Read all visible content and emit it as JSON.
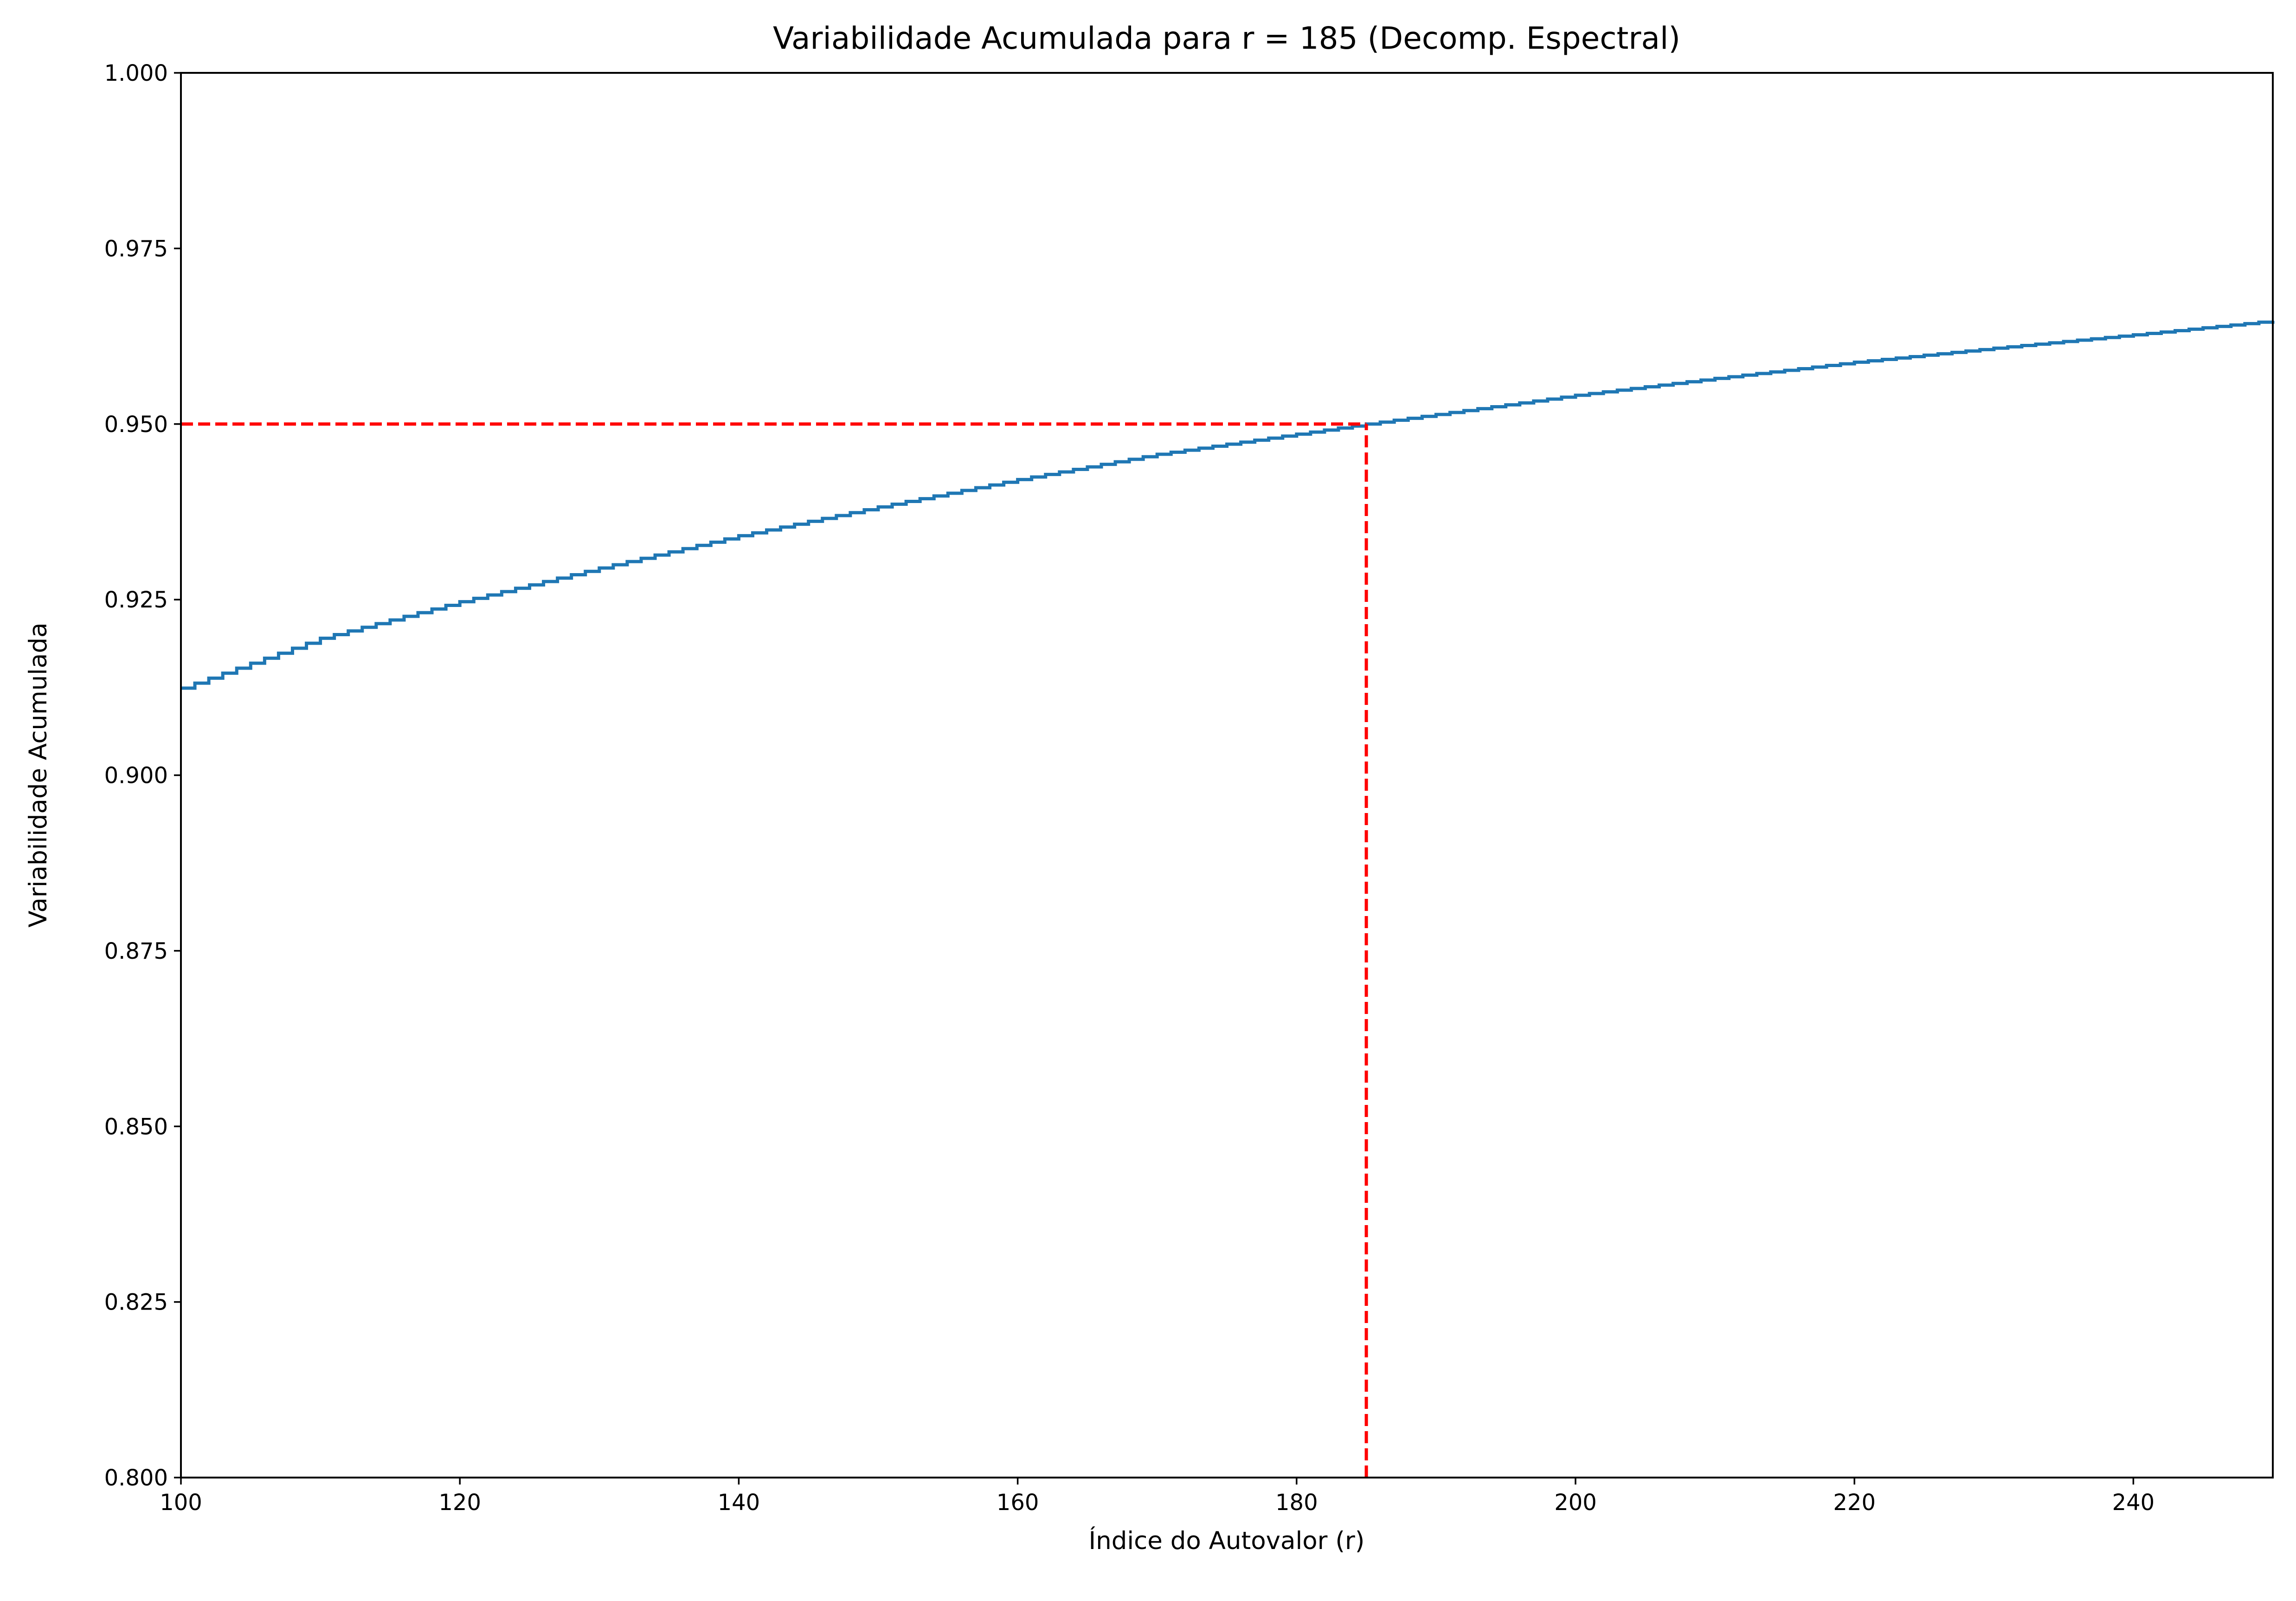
{
  "chart_data": {
    "type": "line",
    "title": "Variabilidade Acumulada para r = 185 (Decomp. Espectral)",
    "xlabel": "Índice do Autovalor (r)",
    "ylabel": "Variabilidade Acumulada",
    "xlim": [
      100,
      250
    ],
    "ylim": [
      0.8,
      1.0
    ],
    "xticks": [
      100,
      120,
      140,
      160,
      180,
      200,
      220,
      240
    ],
    "xtick_labels": [
      "100",
      "120",
      "140",
      "160",
      "180",
      "200",
      "220",
      "240"
    ],
    "yticks": [
      0.8,
      0.825,
      0.85,
      0.875,
      0.9,
      0.925,
      0.95,
      0.975,
      1.0
    ],
    "ytick_labels": [
      "0.800",
      "0.825",
      "0.850",
      "0.875",
      "0.900",
      "0.925",
      "0.950",
      "0.975",
      "1.000"
    ],
    "grid": false,
    "series": [
      {
        "color": "#1f77b4",
        "step": true,
        "x": [
          100,
          110,
          120,
          130,
          140,
          150,
          160,
          170,
          185,
          200,
          210,
          220,
          230,
          240,
          250
        ],
        "y": [
          0.9124,
          0.9195,
          0.9247,
          0.9295,
          0.9341,
          0.9382,
          0.9421,
          0.9457,
          0.95,
          0.9541,
          0.9565,
          0.9588,
          0.9608,
          0.9627,
          0.9647
        ]
      }
    ],
    "reference_lines": [
      {
        "orientation": "horizontal",
        "y": 0.95,
        "x_from": 100,
        "x_to": 185,
        "color": "#ff0000",
        "style": "dashed"
      },
      {
        "orientation": "vertical",
        "x": 185,
        "y_from": 0.8,
        "y_to": 0.95,
        "color": "#ff0000",
        "style": "dashed"
      }
    ]
  }
}
